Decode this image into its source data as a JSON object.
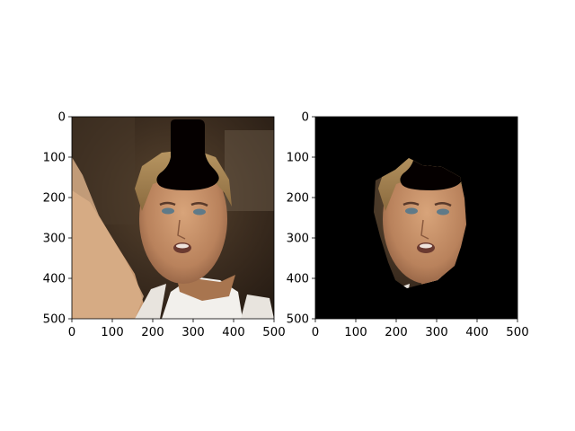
{
  "figure": {
    "panels": [
      {
        "name": "original-face-with-hat",
        "x_ticks": [
          "0",
          "100",
          "200",
          "300",
          "400",
          "500"
        ],
        "y_ticks": [
          "0",
          "100",
          "200",
          "300",
          "400",
          "500"
        ],
        "x_range": [
          0,
          500
        ],
        "y_range": [
          0,
          500
        ]
      },
      {
        "name": "segmented-face-with-hat",
        "x_ticks": [
          "0",
          "100",
          "200",
          "300",
          "400",
          "500"
        ],
        "y_ticks": [
          "0",
          "100",
          "200",
          "300",
          "400",
          "500"
        ],
        "x_range": [
          0,
          500
        ],
        "y_range": [
          0,
          500
        ]
      }
    ]
  }
}
